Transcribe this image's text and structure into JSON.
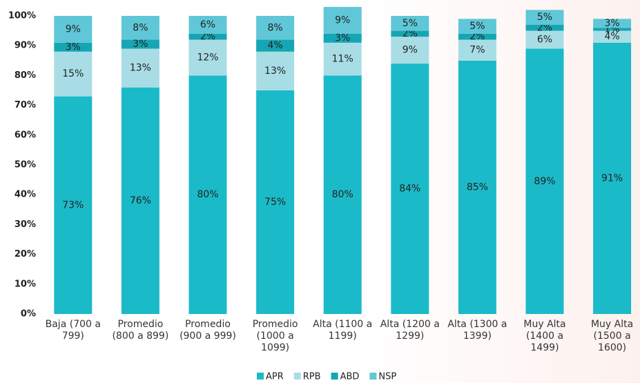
{
  "chart_data": {
    "type": "stacked_bar",
    "categories": [
      "Baja (700 a 799)",
      "Promedio (800 a 899)",
      "Promedio (900 a 999)",
      "Promedio (1000 a 1099)",
      "Alta (1100 a 1199)",
      "Alta (1200 a 1299)",
      "Alta (1300 a 1399)",
      "Muy Alta (1400 a 1499)",
      "Muy Alta (1500 a 1600)"
    ],
    "series": [
      {
        "name": "APR",
        "color": "#1bbac9",
        "values": [
          73,
          76,
          80,
          75,
          80,
          84,
          85,
          89,
          91
        ],
        "value_labels": [
          "73%",
          "76%",
          "80%",
          "75%",
          "80%",
          "84%",
          "85%",
          "89%",
          "91%"
        ]
      },
      {
        "name": "RPB",
        "color": "#a9dde6",
        "values": [
          15,
          13,
          12,
          13,
          11,
          9,
          7,
          6,
          4
        ],
        "value_labels": [
          "15%",
          "13%",
          "12%",
          "13%",
          "11%",
          "9%",
          "7%",
          "6%",
          "4%"
        ]
      },
      {
        "name": "ABD",
        "color": "#16a6b3",
        "values": [
          3,
          3,
          2,
          4,
          3,
          2,
          2,
          2,
          1
        ],
        "value_labels": [
          "3%",
          "3%",
          "2%",
          "4%",
          "3%",
          "2%",
          "2%",
          "2%",
          "1%"
        ]
      },
      {
        "name": "NSP",
        "color": "#5fc7d7",
        "values": [
          9,
          8,
          6,
          8,
          9,
          5,
          5,
          5,
          3
        ],
        "value_labels": [
          "9%",
          "8%",
          "6%",
          "8%",
          "9%",
          "5%",
          "5%",
          "5%",
          "3%"
        ]
      }
    ],
    "ylim": [
      0,
      100
    ],
    "yticks": [
      {
        "value": 0,
        "label": "0%"
      },
      {
        "value": 10,
        "label": "10%"
      },
      {
        "value": 20,
        "label": "20%"
      },
      {
        "value": 30,
        "label": "30%"
      },
      {
        "value": 40,
        "label": "40%"
      },
      {
        "value": 50,
        "label": "50%"
      },
      {
        "value": 60,
        "label": "60%"
      },
      {
        "value": 70,
        "label": "70%"
      },
      {
        "value": 80,
        "label": "80%"
      },
      {
        "value": 90,
        "label": "90%"
      },
      {
        "value": 100,
        "label": "100%"
      }
    ],
    "legend": "bottom"
  }
}
